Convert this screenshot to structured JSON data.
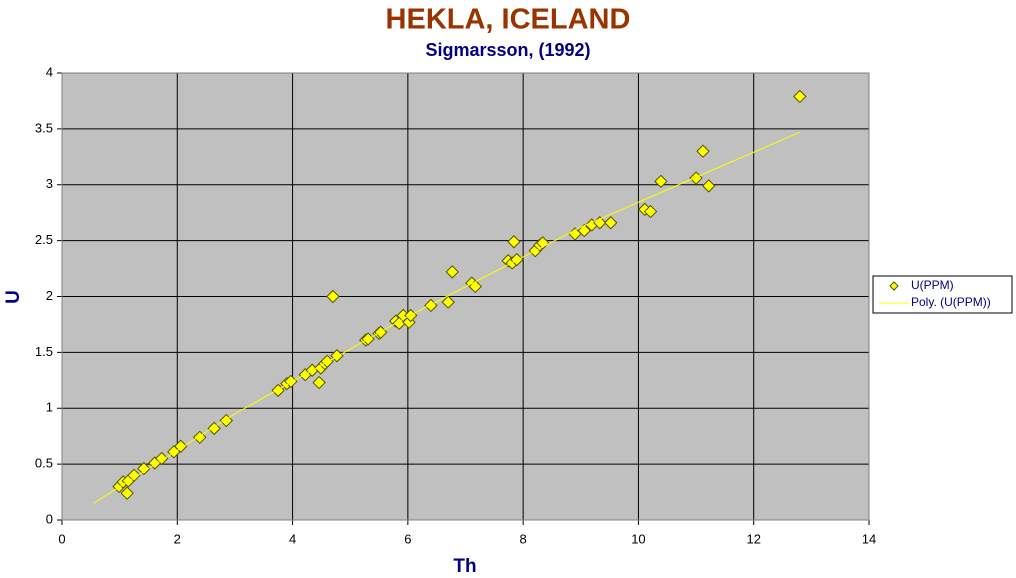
{
  "chart_data": {
    "type": "scatter",
    "title": "HEKLA, ICELAND",
    "subtitle": "Sigmarsson, (1992)",
    "x_label": "Th",
    "y_label": "U",
    "xlim": [
      0,
      14
    ],
    "ylim": [
      0,
      4
    ],
    "xticks": [
      0,
      2,
      4,
      6,
      8,
      10,
      12,
      14
    ],
    "yticks": [
      0,
      0.5,
      1,
      1.5,
      2,
      2.5,
      3,
      3.5,
      4
    ],
    "grid": true,
    "legend": "right",
    "series": [
      {
        "name": "U(PPM)",
        "color": "#ffff00",
        "x": [
          0.99,
          1.06,
          1.13,
          1.15,
          1.25,
          1.42,
          1.61,
          1.73,
          1.94,
          2.06,
          2.39,
          2.64,
          2.85,
          3.75,
          3.9,
          3.97,
          4.22,
          4.34,
          4.46,
          4.49,
          4.56,
          4.6,
          4.7,
          4.77,
          5.27,
          5.31,
          5.5,
          5.53,
          5.79,
          5.85,
          5.92,
          6.02,
          6.05,
          6.4,
          6.7,
          6.77,
          7.11,
          7.17,
          7.74,
          7.81,
          7.84,
          7.89,
          8.21,
          8.29,
          8.34,
          8.9,
          9.06,
          9.19,
          9.33,
          9.52,
          10.11,
          10.21,
          10.39,
          11.0,
          11.12,
          11.22,
          12.8
        ],
        "values": [
          0.3,
          0.34,
          0.24,
          0.35,
          0.4,
          0.46,
          0.51,
          0.55,
          0.61,
          0.66,
          0.74,
          0.82,
          0.89,
          1.16,
          1.22,
          1.24,
          1.3,
          1.34,
          1.23,
          1.36,
          1.4,
          1.42,
          2.0,
          1.47,
          1.61,
          1.62,
          1.67,
          1.68,
          1.78,
          1.76,
          1.83,
          1.77,
          1.83,
          1.92,
          1.95,
          2.22,
          2.12,
          2.09,
          2.32,
          2.3,
          2.49,
          2.33,
          2.41,
          2.46,
          2.48,
          2.56,
          2.59,
          2.64,
          2.66,
          2.66,
          2.78,
          2.76,
          3.03,
          3.06,
          3.3,
          2.99,
          3.79
        ]
      },
      {
        "name": "Poly. (U(PPM))",
        "color": "#ffff00",
        "kind": "trendline",
        "x": [
          0.55,
          3,
          6,
          9,
          12.8
        ],
        "values": [
          0.15,
          0.95,
          1.82,
          2.62,
          3.47
        ]
      }
    ]
  }
}
